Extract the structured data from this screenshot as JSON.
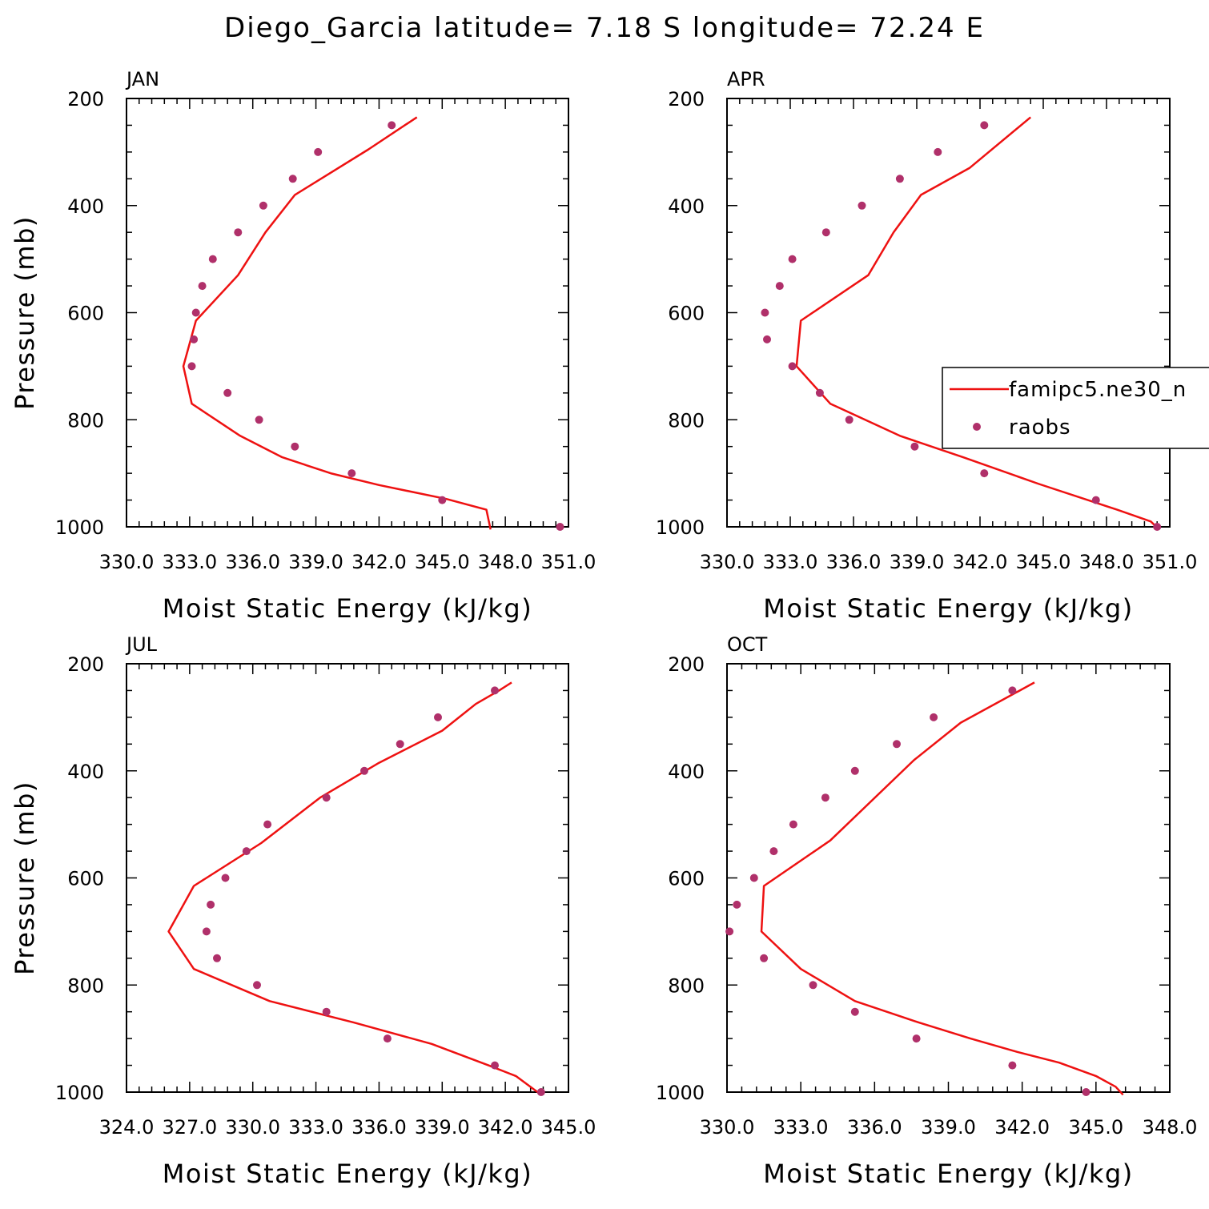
{
  "title": "Diego_Garcia  latitude= 7.18 S longitude= 72.24 E",
  "legend": {
    "model_label": "famipc5.ne30_n",
    "obs_label": "raobs",
    "model_color": "#ee1111",
    "obs_color": "#b0306a"
  },
  "chart_data": [
    {
      "type": "line",
      "panel": "JAN",
      "xlabel": "Moist Static Energy (kJ/kg)",
      "ylabel": "Pressure (mb)",
      "xlim": [
        330,
        351
      ],
      "ylim": [
        200,
        1000
      ],
      "y_inverted": true,
      "x_tick_labels": [
        "330.0",
        "333.0",
        "336.0",
        "339.0",
        "342.0",
        "345.0",
        "348.0",
        "351.0"
      ],
      "y_tick_labels": [
        "200",
        "400",
        "600",
        "800",
        "1000"
      ],
      "series": [
        {
          "name": "famipc5.ne30_n",
          "kind": "line",
          "x": [
            343.8,
            341.5,
            338.0,
            336.6,
            335.3,
            333.3,
            332.7,
            333.1,
            335.4,
            337.4,
            339.7,
            342.0,
            345.2,
            347.1,
            347.3
          ],
          "y": [
            235,
            295,
            380,
            450,
            530,
            615,
            700,
            770,
            830,
            870,
            900,
            922,
            948,
            968,
            1005
          ]
        },
        {
          "name": "raobs",
          "kind": "scatter",
          "x": [
            342.6,
            339.1,
            337.9,
            336.5,
            335.3,
            334.1,
            333.6,
            333.3,
            333.2,
            333.1,
            334.8,
            336.3,
            338.0,
            340.7,
            345.0,
            350.6
          ],
          "y": [
            250,
            300,
            350,
            400,
            450,
            500,
            550,
            600,
            650,
            700,
            750,
            800,
            850,
            900,
            950,
            1000
          ]
        }
      ]
    },
    {
      "type": "line",
      "panel": "APR",
      "xlabel": "Moist Static Energy (kJ/kg)",
      "ylabel": "Pressure (mb)",
      "xlim": [
        330,
        351
      ],
      "ylim": [
        200,
        1000
      ],
      "y_inverted": true,
      "x_tick_labels": [
        "330.0",
        "333.0",
        "336.0",
        "339.0",
        "342.0",
        "345.0",
        "348.0",
        "351.0"
      ],
      "y_tick_labels": [
        "200",
        "400",
        "600",
        "800",
        "1000"
      ],
      "series": [
        {
          "name": "famipc5.ne30_n",
          "kind": "line",
          "x": [
            344.4,
            341.5,
            339.2,
            337.9,
            336.7,
            333.5,
            333.3,
            334.9,
            338.2,
            341.2,
            344.8,
            348.5,
            350.1,
            350.5
          ],
          "y": [
            235,
            330,
            380,
            450,
            530,
            615,
            700,
            770,
            830,
            870,
            920,
            968,
            990,
            1005
          ]
        },
        {
          "name": "raobs",
          "kind": "scatter",
          "x": [
            342.2,
            340.0,
            338.2,
            336.4,
            334.7,
            333.1,
            332.5,
            331.8,
            331.9,
            333.1,
            334.4,
            335.8,
            338.9,
            342.2,
            347.5,
            350.4
          ],
          "y": [
            250,
            300,
            350,
            400,
            450,
            500,
            550,
            600,
            650,
            700,
            750,
            800,
            850,
            900,
            950,
            1000
          ]
        }
      ]
    },
    {
      "type": "line",
      "panel": "JUL",
      "xlabel": "Moist Static Energy (kJ/kg)",
      "ylabel": "Pressure (mb)",
      "xlim": [
        324,
        345
      ],
      "ylim": [
        200,
        1000
      ],
      "y_inverted": true,
      "x_tick_labels": [
        "324.0",
        "327.0",
        "330.0",
        "333.0",
        "336.0",
        "339.0",
        "342.0",
        "345.0"
      ],
      "y_tick_labels": [
        "200",
        "400",
        "600",
        "800",
        "1000"
      ],
      "series": [
        {
          "name": "famipc5.ne30_n",
          "kind": "line",
          "x": [
            342.3,
            341.7,
            340.6,
            339.0,
            336.0,
            333.2,
            330.4,
            327.2,
            326.0,
            327.2,
            330.8,
            334.8,
            338.5,
            341.2,
            342.5,
            343.7
          ],
          "y": [
            235,
            250,
            275,
            325,
            385,
            450,
            535,
            615,
            700,
            770,
            830,
            870,
            910,
            950,
            970,
            1005
          ]
        },
        {
          "name": "raobs",
          "kind": "scatter",
          "x": [
            341.5,
            338.8,
            337.0,
            335.3,
            333.5,
            330.7,
            329.7,
            328.7,
            328.0,
            327.8,
            328.3,
            330.2,
            333.5,
            336.4,
            341.5,
            343.7
          ],
          "y": [
            250,
            300,
            350,
            400,
            450,
            500,
            550,
            600,
            650,
            700,
            750,
            800,
            850,
            900,
            950,
            1000
          ]
        }
      ]
    },
    {
      "type": "line",
      "panel": "OCT",
      "xlabel": "Moist Static Energy (kJ/kg)",
      "ylabel": "Pressure (mb)",
      "xlim": [
        330,
        348
      ],
      "ylim": [
        200,
        1000
      ],
      "y_inverted": true,
      "x_tick_labels": [
        "330.0",
        "333.0",
        "336.0",
        "339.0",
        "342.0",
        "345.0",
        "348.0"
      ],
      "y_tick_labels": [
        "200",
        "400",
        "600",
        "800",
        "1000"
      ],
      "series": [
        {
          "name": "famipc5.ne30_n",
          "kind": "line",
          "x": [
            342.5,
            339.5,
            337.6,
            334.2,
            331.5,
            331.4,
            333.0,
            335.2,
            337.8,
            339.9,
            341.8,
            343.5,
            345.0,
            345.8,
            346.1
          ],
          "y": [
            235,
            310,
            380,
            530,
            615,
            700,
            770,
            830,
            870,
            900,
            925,
            945,
            970,
            990,
            1005
          ]
        },
        {
          "name": "raobs",
          "kind": "scatter",
          "x": [
            341.6,
            338.4,
            336.9,
            335.2,
            334.0,
            332.7,
            331.9,
            331.1,
            330.4,
            330.1,
            331.5,
            333.5,
            335.2,
            337.7,
            341.6,
            344.6
          ],
          "y": [
            250,
            300,
            350,
            400,
            450,
            500,
            550,
            600,
            650,
            700,
            750,
            800,
            850,
            900,
            950,
            1000
          ]
        }
      ]
    }
  ]
}
